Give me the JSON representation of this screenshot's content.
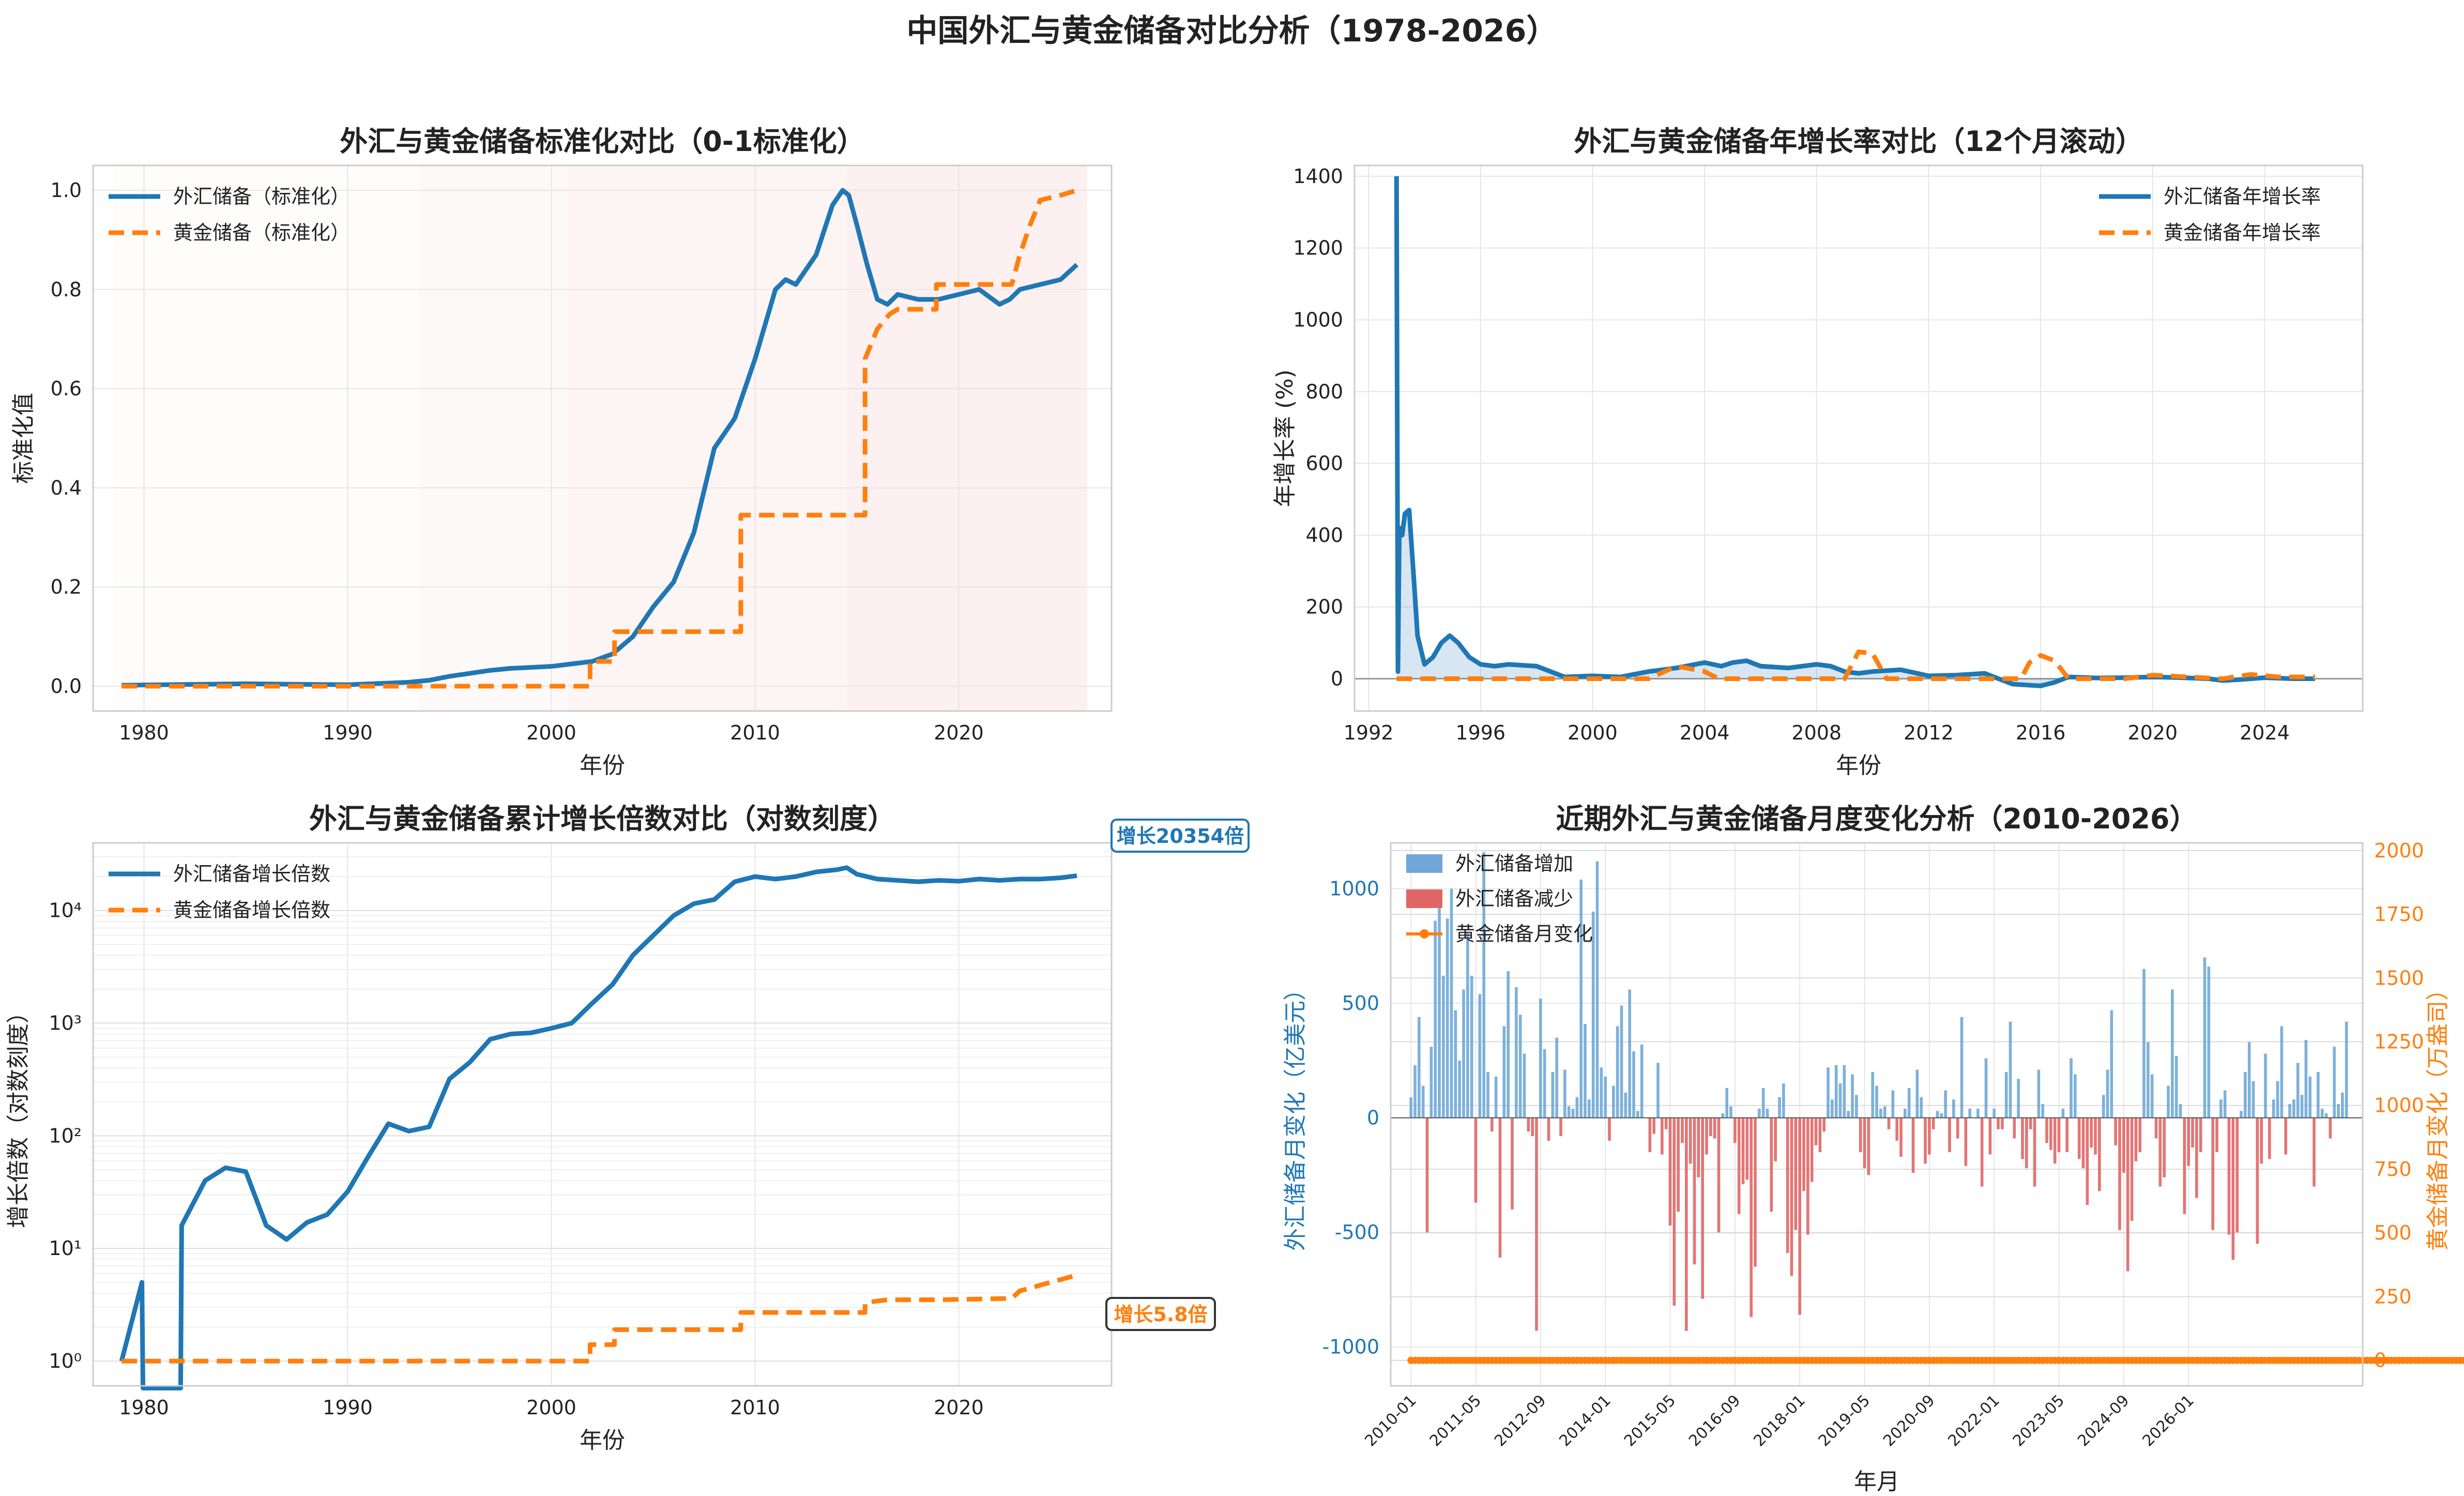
{
  "suptitle": "中国外汇与黄金储备对比分析（1978-2026）",
  "colors": {
    "blue": "#1f77b4",
    "orange": "#ff7f0e",
    "red": "#e06666",
    "bar_blue": "#6fa8d6",
    "shade": "#fbe3e3"
  },
  "chart_data": [
    {
      "type": "line",
      "title": "外汇与黄金储备标准化对比（0-1标准化）",
      "xlabel": "年份",
      "ylabel": "标准化值",
      "xlim": [
        1977.5,
        2027.5
      ],
      "ylim": [
        -0.05,
        1.05
      ],
      "xticks": [
        1980,
        1990,
        2000,
        2010,
        2020
      ],
      "xtick_labels": [
        "1980",
        "1990",
        "2000",
        "2010",
        "2020"
      ],
      "yticks": [
        0.0,
        0.2,
        0.4,
        0.6,
        0.8,
        1.0
      ],
      "ytick_labels": [
        "0.0",
        "0.2",
        "0.4",
        "0.6",
        "0.8",
        "1.0"
      ],
      "legend": "top-left",
      "shaded_ranges": [
        [
          1978.5,
          1993.5,
          0.12
        ],
        [
          1993.5,
          2000.8,
          0.22
        ],
        [
          2000.8,
          2014.5,
          0.4
        ],
        [
          2014.5,
          2026.3,
          0.55
        ]
      ],
      "series": [
        {
          "name": "外汇储备（标准化）",
          "style": "solid",
          "color": "#1f77b4",
          "x": [
            1978.9,
            1985,
            1990,
            1993,
            1994,
            1995,
            1997,
            1998,
            2000,
            2001,
            2002,
            2003,
            2004,
            2005,
            2006,
            2007,
            2008,
            2009,
            2010,
            2011,
            2011.5,
            2012,
            2013,
            2013.8,
            2014.3,
            2014.6,
            2015,
            2015.5,
            2016,
            2016.5,
            2017,
            2018,
            2019,
            2020,
            2021,
            2022,
            2022.5,
            2023,
            2024,
            2025,
            2025.8
          ],
          "y": [
            0.002,
            0.005,
            0.003,
            0.008,
            0.012,
            0.02,
            0.032,
            0.036,
            0.04,
            0.045,
            0.05,
            0.065,
            0.1,
            0.16,
            0.21,
            0.31,
            0.48,
            0.54,
            0.66,
            0.8,
            0.82,
            0.81,
            0.87,
            0.97,
            1.0,
            0.99,
            0.93,
            0.85,
            0.78,
            0.77,
            0.79,
            0.78,
            0.78,
            0.79,
            0.8,
            0.77,
            0.78,
            0.8,
            0.81,
            0.82,
            0.85
          ]
        },
        {
          "name": "黄金储备（标准化）",
          "style": "dashed",
          "color": "#ff7f0e",
          "x": [
            1978.9,
            2001.9,
            2001.9,
            2003.1,
            2003.1,
            2009.3,
            2009.3,
            2015.4,
            2015.4,
            2016,
            2016.6,
            2017,
            2018.9,
            2018.9,
            2019.5,
            2022.6,
            2023,
            2023.5,
            2024,
            2025,
            2025.8
          ],
          "y": [
            0.0,
            0.0,
            0.05,
            0.05,
            0.11,
            0.11,
            0.345,
            0.345,
            0.66,
            0.72,
            0.75,
            0.76,
            0.76,
            0.81,
            0.81,
            0.81,
            0.87,
            0.93,
            0.98,
            0.99,
            1.0
          ]
        }
      ]
    },
    {
      "type": "line",
      "title": "外汇与黄金储备年增长率对比（12个月滚动）",
      "xlabel": "年份",
      "ylabel": "年增长率 (%)",
      "xlim": [
        1991.5,
        2027.5
      ],
      "ylim": [
        -90,
        1430
      ],
      "xticks": [
        1992,
        1996,
        2000,
        2004,
        2008,
        2012,
        2016,
        2020,
        2024
      ],
      "xtick_labels": [
        "1992",
        "1996",
        "2000",
        "2004",
        "2008",
        "2012",
        "2016",
        "2020",
        "2024"
      ],
      "yticks": [
        0,
        200,
        400,
        600,
        800,
        1000,
        1200,
        1400
      ],
      "ytick_labels": [
        "0",
        "200",
        "400",
        "600",
        "800",
        "1000",
        "1200",
        "1400"
      ],
      "legend": "top-right",
      "series": [
        {
          "name": "外汇储备年增长率",
          "style": "solid",
          "color": "#1f77b4",
          "fill": true,
          "x": [
            1993.0,
            1993.05,
            1993.1,
            1993.2,
            1993.3,
            1993.45,
            1993.6,
            1993.75,
            1994,
            1994.3,
            1994.6,
            1994.9,
            1995.2,
            1995.6,
            1996,
            1996.5,
            1997,
            1998,
            1998.5,
            1999,
            2000,
            2001,
            2002,
            2003,
            2004,
            2004.6,
            2005,
            2005.5,
            2006,
            2007,
            2008,
            2008.5,
            2009,
            2009.5,
            2010,
            2011,
            2012,
            2013,
            2014,
            2015,
            2016,
            2016.5,
            2017,
            2018,
            2019,
            2020,
            2021,
            2022,
            2022.5,
            2023,
            2024,
            2025,
            2025.8
          ],
          "y": [
            1400,
            20,
            420,
            400,
            460,
            470,
            300,
            120,
            40,
            60,
            100,
            120,
            100,
            60,
            40,
            35,
            40,
            35,
            20,
            5,
            8,
            5,
            20,
            30,
            45,
            35,
            45,
            50,
            35,
            30,
            40,
            35,
            20,
            15,
            20,
            25,
            8,
            10,
            15,
            -15,
            -20,
            -10,
            5,
            2,
            3,
            5,
            3,
            0,
            -5,
            -3,
            3,
            0,
            0
          ]
        },
        {
          "name": "黄金储备年增长率",
          "style": "dashed",
          "color": "#ff7f0e",
          "x": [
            1993,
            2002,
            2003,
            2004,
            2004.5,
            2009,
            2009.5,
            2010,
            2010.5,
            2015.3,
            2015.6,
            2016,
            2016.5,
            2017,
            2019,
            2020,
            2022.5,
            2023.5,
            2024.5,
            2025.8
          ],
          "y": [
            0,
            0,
            35,
            20,
            0,
            0,
            75,
            70,
            0,
            0,
            45,
            65,
            50,
            0,
            0,
            10,
            0,
            12,
            5,
            5
          ]
        }
      ]
    },
    {
      "type": "line",
      "title": "外汇与黄金储备累计增长倍数对比（对数刻度）",
      "xlabel": "年份",
      "ylabel": "增长倍数（对数刻度）",
      "yscale": "log",
      "xlim": [
        1977.5,
        2027.5
      ],
      "ylim_log10": [
        -0.22,
        4.6
      ],
      "xticks": [
        1980,
        1990,
        2000,
        2010,
        2020
      ],
      "xtick_labels": [
        "1980",
        "1990",
        "2000",
        "2010",
        "2020"
      ],
      "ytick_labels": [
        "10⁰",
        "10¹",
        "10²",
        "10³",
        "10⁴"
      ],
      "legend": "top-left",
      "annotations": [
        "增长20354倍",
        "增长5.8倍"
      ],
      "series": [
        {
          "name": "外汇储备增长倍数",
          "style": "solid",
          "color": "#1f77b4",
          "x": [
            1978.9,
            1979.9,
            1979.95,
            1981.8,
            1981.85,
            1983,
            1984,
            1985,
            1986,
            1987,
            1988,
            1989,
            1990,
            1991,
            1992,
            1993,
            1994,
            1995,
            1996,
            1997,
            1998,
            1999,
            2000,
            2001,
            2002,
            2003,
            2004,
            2005,
            2006,
            2007,
            2008,
            2009,
            2010,
            2011,
            2012,
            2013,
            2014,
            2014.5,
            2015,
            2016,
            2017,
            2018,
            2019,
            2020,
            2021,
            2022,
            2023,
            2024,
            2025,
            2025.8
          ],
          "y": [
            1,
            5,
            0.3,
            0.3,
            16,
            40,
            52,
            48,
            16,
            12,
            17,
            20,
            32,
            65,
            128,
            110,
            120,
            320,
            450,
            720,
            800,
            820,
            900,
            1000,
            1500,
            2200,
            4000,
            6000,
            9000,
            11500,
            12500,
            18000,
            20000,
            19000,
            20000,
            22000,
            23000,
            24000,
            21000,
            19000,
            18500,
            18000,
            18500,
            18200,
            19000,
            18500,
            19000,
            19000,
            19500,
            20354
          ]
        },
        {
          "name": "黄金储备增长倍数",
          "style": "dashed",
          "color": "#ff7f0e",
          "x": [
            1978.9,
            2001.9,
            2001.9,
            2003.1,
            2003.1,
            2009.3,
            2009.3,
            2015.4,
            2015.4,
            2016.5,
            2019,
            2022.6,
            2023,
            2025.8
          ],
          "y": [
            1,
            1,
            1.4,
            1.4,
            1.9,
            1.9,
            2.7,
            2.7,
            3.3,
            3.5,
            3.5,
            3.6,
            4.2,
            5.8
          ]
        }
      ]
    },
    {
      "type": "bar",
      "title": "近期外汇与黄金储备月度变化分析（2010-2026）",
      "xlabel": "年月",
      "ylabel": "外汇储备月变化（亿美元）",
      "y2label": "黄金储备月变化（万盎司）",
      "ylim": [
        -1170,
        1200
      ],
      "y2lim": [
        -100,
        2030
      ],
      "yticks": [
        -1000,
        -500,
        0,
        500,
        1000
      ],
      "ytick_labels": [
        "-1000",
        "-500",
        "0",
        "500",
        "1000"
      ],
      "y2ticks": [
        0,
        250,
        500,
        750,
        1000,
        1250,
        1500,
        1750,
        2000
      ],
      "y2tick_labels": [
        "0",
        "250",
        "500",
        "750",
        "1000",
        "1250",
        "1500",
        "1750",
        "2000"
      ],
      "xtick_labels": [
        "2010-01",
        "2011-05",
        "2012-09",
        "2014-01",
        "2015-05",
        "2016-09",
        "2018-01",
        "2019-05",
        "2020-09",
        "2022-01",
        "2023-05",
        "2024-09",
        "2026-01"
      ],
      "start": "2010-01",
      "legend": "top-left",
      "series": [
        {
          "name": "外汇储备增加",
          "color": "#6fa8d6"
        },
        {
          "name": "外汇储备减少",
          "color": "#e06666"
        },
        {
          "name": "黄金储备月变化",
          "color": "#ff7f0e",
          "style": "line-marker"
        }
      ],
      "fx_values": [
        90,
        230,
        440,
        140,
        -500,
        310,
        860,
        990,
        620,
        870,
        1000,
        470,
        250,
        560,
        810,
        620,
        -370,
        540,
        1160,
        200,
        -60,
        180,
        -610,
        400,
        640,
        -400,
        570,
        450,
        280,
        -60,
        -80,
        -930,
        520,
        300,
        -100,
        200,
        350,
        -80,
        210,
        50,
        40,
        90,
        1040,
        410,
        80,
        900,
        1120,
        220,
        180,
        -100,
        140,
        400,
        490,
        110,
        560,
        290,
        30,
        320,
        0,
        -150,
        -70,
        240,
        -160,
        -50,
        -470,
        -820,
        -410,
        -110,
        -930,
        -200,
        -640,
        -260,
        -790,
        -160,
        -80,
        -90,
        -500,
        20,
        130,
        50,
        -110,
        -420,
        -290,
        -270,
        -870,
        -650,
        40,
        130,
        40,
        -410,
        -190,
        90,
        150,
        -590,
        -690,
        -490,
        -860,
        -320,
        -510,
        -280,
        -120,
        -150,
        -60,
        220,
        80,
        230,
        150,
        230,
        30,
        190,
        100,
        -150,
        -220,
        -250,
        200,
        140,
        40,
        50,
        -50,
        120,
        -100,
        -170,
        40,
        130,
        -240,
        210,
        90,
        -200,
        -160,
        -50,
        30,
        20,
        120,
        -150,
        80,
        -90,
        440,
        -210,
        40,
        0,
        40,
        -300,
        260,
        -160,
        40,
        -50,
        -50,
        200,
        420,
        -90,
        170,
        -180,
        -220,
        -50,
        -300,
        210,
        60,
        -110,
        -140,
        -200,
        -150,
        40,
        -150,
        260,
        190,
        -180,
        -220,
        -380,
        -130,
        -160,
        -320,
        100,
        210,
        470,
        -120,
        -490,
        -240,
        -670,
        -450,
        -190,
        -150,
        650,
        330,
        190,
        -90,
        -300,
        -260,
        140,
        560,
        270,
        60,
        -420,
        -210,
        -130,
        -350,
        -150,
        700,
        660,
        -490,
        -150,
        80,
        120,
        -510,
        -620,
        -500,
        30,
        200,
        330,
        160,
        -550,
        -200,
        280,
        -180,
        80,
        160,
        400,
        -160,
        60,
        80,
        240,
        100,
        340,
        180,
        -300,
        200,
        40,
        20,
        -90,
        310,
        60,
        110,
        420
      ],
      "gold_values": [
        0,
        0,
        0,
        0,
        0,
        0,
        0,
        0,
        0,
        0,
        0,
        0,
        0,
        0,
        0,
        0,
        0,
        0,
        0,
        0,
        0,
        0,
        0,
        0,
        0,
        0,
        0,
        0,
        0,
        0,
        0,
        0,
        0,
        0,
        0,
        0,
        0,
        0,
        0,
        0,
        0,
        0,
        0,
        0,
        0,
        0,
        0,
        0,
        0,
        0,
        0,
        0,
        0,
        0,
        0,
        0,
        0,
        0,
        0,
        0,
        0,
        0,
        0,
        0,
        0,
        0,
        0,
        0,
        0,
        0,
        0,
        0,
        0,
        0,
        0,
        0,
        0,
        0,
        0,
        0,
        0,
        0,
        0,
        0,
        0,
        0,
        0,
        0,
        0,
        0,
        0,
        0,
        0,
        0,
        0,
        0,
        0,
        0,
        0,
        0,
        0,
        0,
        0,
        0,
        0,
        0,
        0,
        0,
        0,
        0,
        0,
        0,
        0,
        0,
        0,
        0,
        0,
        0,
        0,
        0,
        0,
        0,
        0,
        0,
        0,
        0,
        0,
        0,
        0,
        0,
        0,
        0,
        0,
        0,
        0,
        0,
        0,
        0,
        0,
        0,
        0,
        0,
        0,
        0,
        0,
        0,
        0,
        0,
        0,
        0,
        0,
        0,
        0,
        0,
        0,
        0,
        0,
        0,
        0,
        0,
        0,
        0,
        0,
        0,
        0,
        0,
        0,
        0,
        0,
        0,
        0,
        0,
        0,
        0,
        0,
        0,
        0,
        0,
        0,
        0,
        0,
        0,
        0,
        0,
        0,
        0,
        0,
        0,
        0,
        0,
        0,
        0,
        0,
        0,
        0,
        0,
        0,
        0,
        0,
        0,
        0,
        0,
        0,
        0,
        0,
        0,
        0,
        0,
        0,
        0,
        0,
        0,
        0,
        0,
        0,
        0,
        0,
        0,
        0,
        0,
        0,
        0,
        0,
        0,
        0,
        0,
        0,
        0,
        0,
        0,
        0,
        0,
        0,
        0,
        0,
        0,
        0,
        0,
        0,
        0,
        0,
        0,
        0,
        0,
        0,
        0,
        0,
        0,
        0,
        0,
        0,
        0,
        0,
        0,
        0,
        0,
        0,
        0,
        0,
        0,
        0,
        0,
        0,
        0,
        0,
        0,
        0,
        0,
        0,
        0,
        0,
        0,
        0,
        0,
        0,
        0,
        0,
        0,
        0,
        0,
        0,
        0,
        0,
        0,
        0,
        0,
        0,
        0,
        0,
        0,
        0,
        0,
        0,
        0,
        0,
        0,
        0,
        0,
        0,
        0,
        0,
        0,
        0
      ]
    }
  ]
}
